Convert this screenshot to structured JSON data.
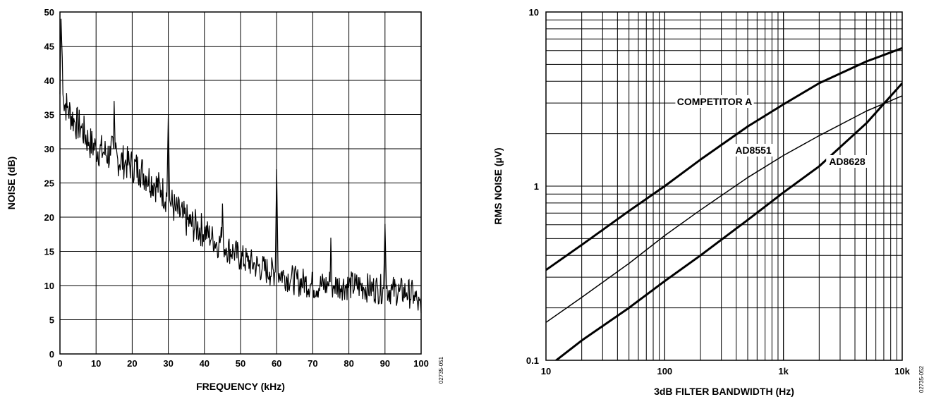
{
  "chart_data": [
    {
      "type": "line",
      "xlabel": "FREQUENCY (kHz)",
      "ylabel": "NOISE (dB)",
      "xlim": [
        0,
        100
      ],
      "ylim": [
        0,
        50
      ],
      "x_ticks": [
        0,
        10,
        20,
        30,
        40,
        50,
        60,
        70,
        80,
        90,
        100
      ],
      "y_ticks": [
        0,
        5,
        10,
        15,
        20,
        25,
        30,
        35,
        40,
        45,
        50
      ],
      "grid": true,
      "code": "02735-051",
      "series": [
        {
          "x": [
            0,
            0.3,
            1,
            2,
            4,
            6,
            8,
            10,
            12,
            14,
            14.8,
            15,
            15.3,
            16,
            18,
            20,
            22,
            24,
            26,
            28,
            29.6,
            30,
            30.4,
            32,
            34,
            36,
            38,
            40,
            42,
            44,
            44.8,
            45,
            45.3,
            46,
            48,
            50,
            52,
            54,
            56,
            58,
            59.6,
            60,
            60.4,
            62,
            64,
            66,
            68,
            70,
            72,
            74,
            74.8,
            75,
            75.3,
            76,
            78,
            80,
            82,
            84,
            86,
            88,
            89.6,
            90,
            90.4,
            92,
            94,
            96,
            98,
            99,
            100
          ],
          "y": [
            38,
            49,
            37,
            36,
            34,
            33,
            31,
            30,
            29.5,
            29,
            30,
            37,
            30,
            28.5,
            28,
            27.5,
            27,
            26,
            25,
            24,
            23,
            35,
            22.5,
            21,
            20,
            19,
            18.5,
            18,
            17,
            16,
            17,
            22,
            16,
            15.5,
            15,
            14,
            13.5,
            13,
            12.5,
            12,
            12,
            27,
            12,
            11.5,
            11,
            10.5,
            10.5,
            10,
            10,
            10,
            10.5,
            17,
            10,
            10,
            10,
            10,
            10,
            9.8,
            9.6,
            9.5,
            9.5,
            19,
            9.5,
            9.3,
            9.1,
            9,
            8.6,
            7.5,
            6
          ]
        }
      ]
    },
    {
      "type": "line",
      "xlabel": "3dB FILTER BANDWIDTH (Hz)",
      "ylabel": "RMS NOISE (µV)",
      "x_scale": "log",
      "y_scale": "log",
      "xlim": [
        10,
        10000
      ],
      "ylim": [
        0.1,
        10
      ],
      "x_tick_labels": [
        "10",
        "100",
        "1k",
        "10k"
      ],
      "y_tick_labels": [
        "0.1",
        "1",
        "10"
      ],
      "grid": true,
      "code": "02735-052",
      "series": [
        {
          "name": "COMPETITOR A",
          "x": [
            10,
            20,
            50,
            100,
            200,
            500,
            1000,
            2000,
            5000,
            10000
          ],
          "y": [
            0.33,
            0.46,
            0.72,
            1.0,
            1.42,
            2.2,
            2.95,
            3.9,
            5.2,
            6.2
          ]
        },
        {
          "name": "AD8551",
          "x": [
            10,
            20,
            50,
            100,
            200,
            500,
            1000,
            2000,
            5000,
            10000
          ],
          "y": [
            0.165,
            0.23,
            0.36,
            0.52,
            0.73,
            1.12,
            1.5,
            1.95,
            2.7,
            3.3
          ]
        },
        {
          "name": "AD8628",
          "x": [
            10,
            20,
            50,
            100,
            200,
            500,
            1000,
            2000,
            5000,
            10000
          ],
          "y": [
            0.09,
            0.13,
            0.2,
            0.285,
            0.4,
            0.64,
            0.92,
            1.3,
            2.3,
            3.9
          ]
        }
      ]
    }
  ]
}
